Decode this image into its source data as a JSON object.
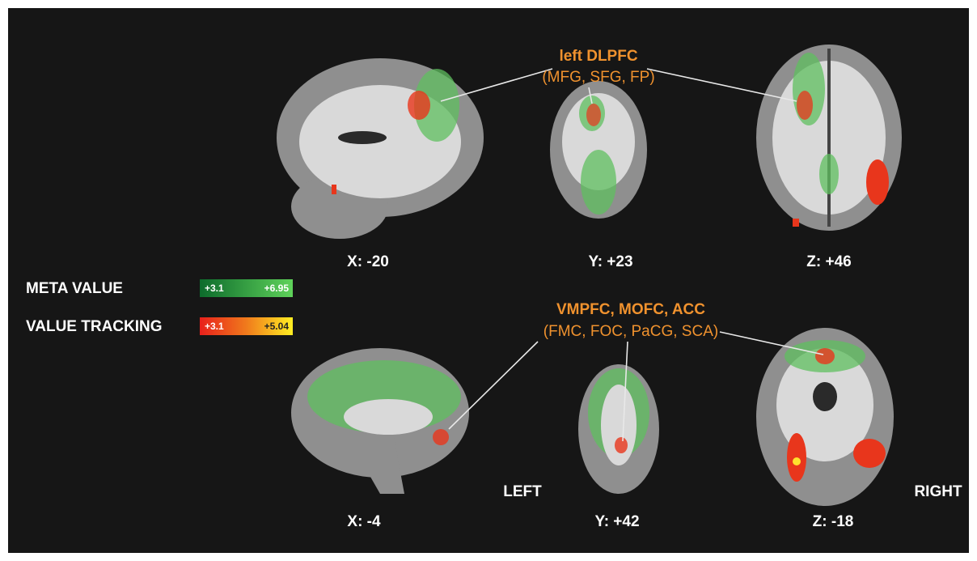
{
  "legend": [
    {
      "label": "META VALUE",
      "min": "+3.1",
      "max": "+6.95"
    },
    {
      "label": "VALUE TRACKING",
      "min": "+3.1",
      "max": "+5.04"
    }
  ],
  "top_row": {
    "annotation": {
      "title": "left DLPFC",
      "subtitle": "(MFG, SFG, FP)"
    },
    "slices": [
      "X: -20",
      "Y: +23",
      "Z: +46"
    ]
  },
  "bottom_row": {
    "annotation": {
      "title": "VMPFC, MOFC, ACC",
      "subtitle": "(FMC, FOC, PaCG, SCA)"
    },
    "slices": [
      "X: -4",
      "Y: +42",
      "Z: -18"
    ]
  },
  "orientation": {
    "left": "LEFT",
    "right": "RIGHT"
  }
}
